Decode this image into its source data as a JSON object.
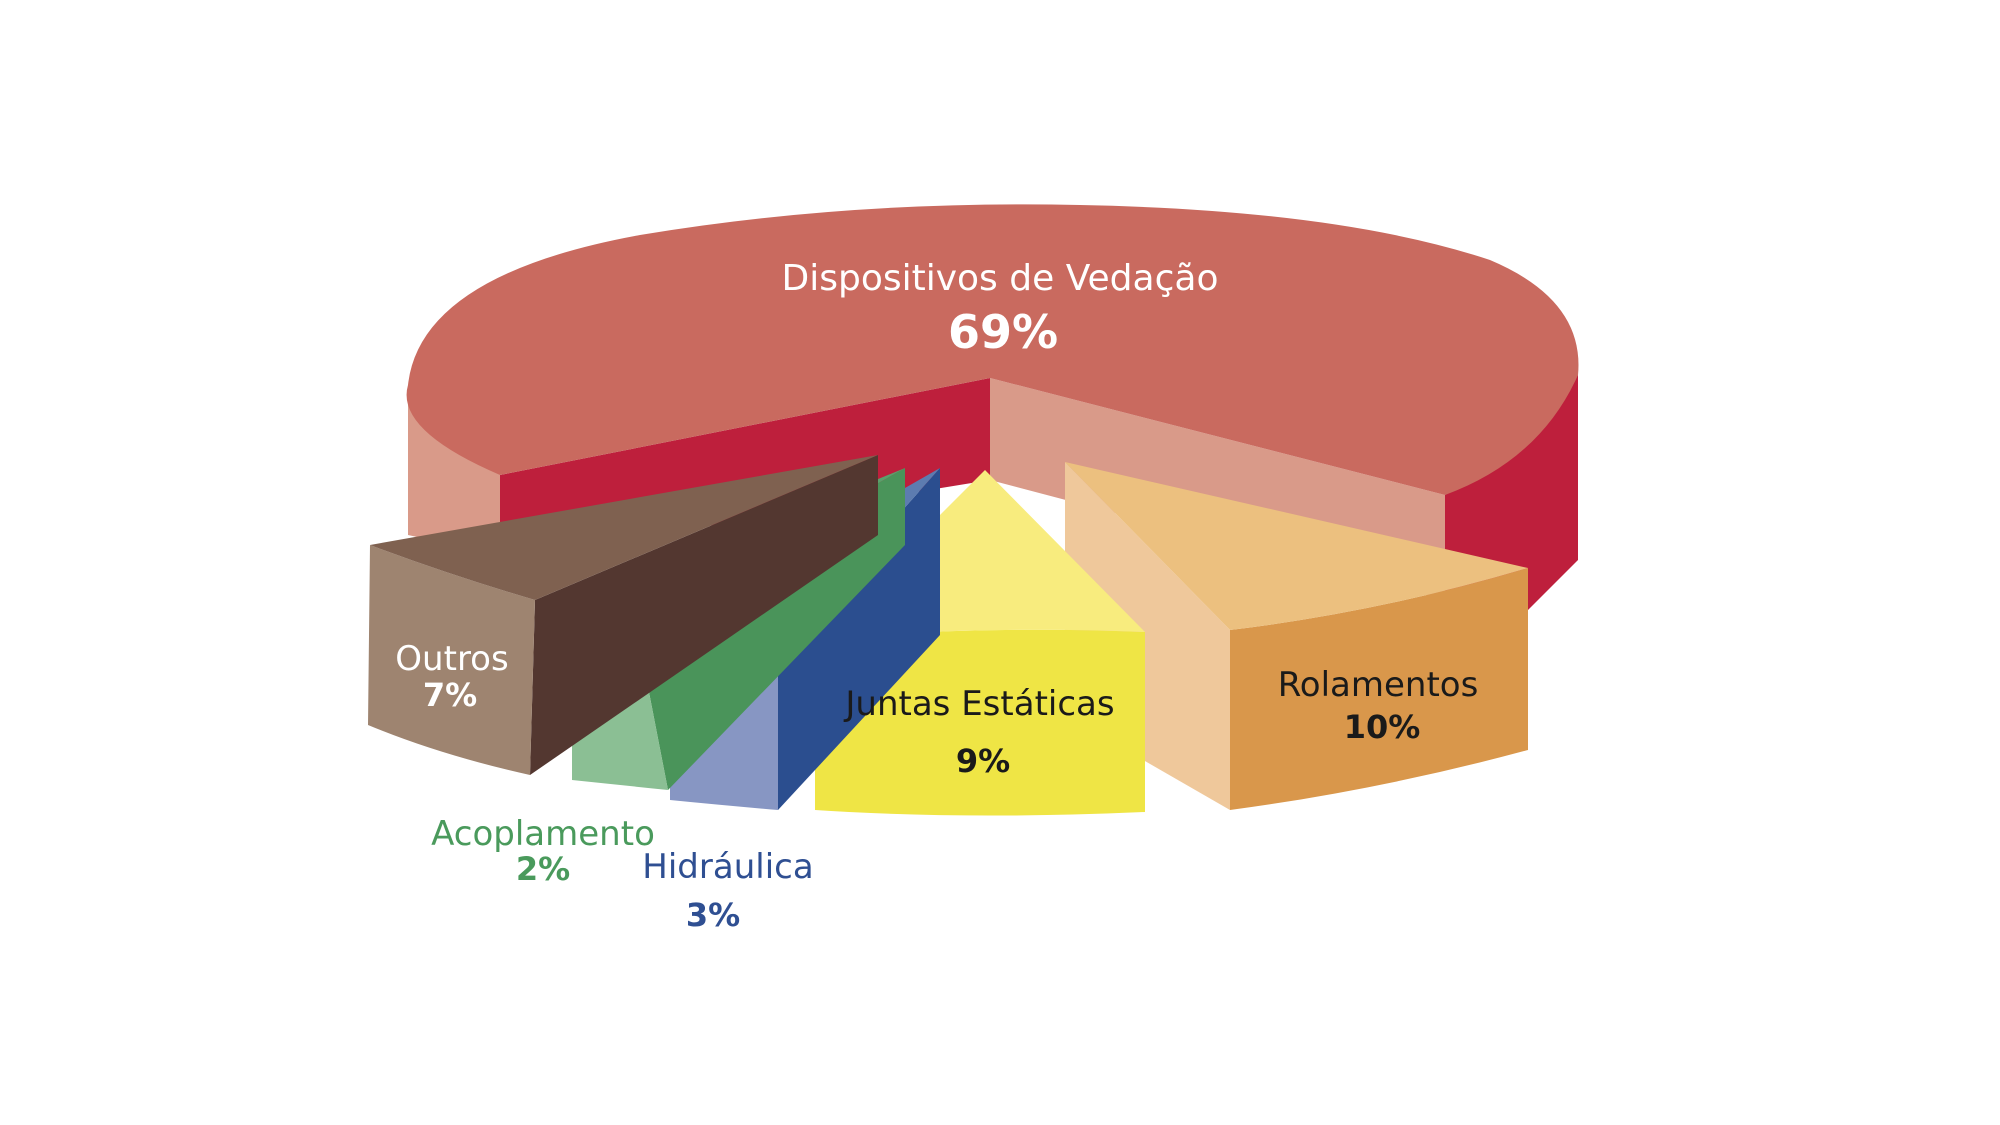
{
  "chart_data": {
    "type": "pie",
    "title": "",
    "slices": [
      {
        "name": "Dispositivos de Vedação",
        "value": 69,
        "label": "69%",
        "top": "#c96a5f",
        "side_light": "#d99a89",
        "side_dark": "#be1f3c",
        "label_color": "#ffffff"
      },
      {
        "name": "Rolamentos",
        "value": 10,
        "label": "10%",
        "top": "#ecc07f",
        "side_light": "#efc89b",
        "side_dark": "#d9974b",
        "label_color": "#1a1a1a"
      },
      {
        "name": "Juntas Estáticas",
        "value": 9,
        "label": "9%",
        "top": "#f8ec7e",
        "side_light": "#f0e64a",
        "side_dark": "#efe545",
        "label_color": "#1a1a1a"
      },
      {
        "name": "Hidráulica",
        "value": 3,
        "label": "3%",
        "top": "#5d7cb0",
        "side_light": "#8796c3",
        "side_dark": "#2b4e8f",
        "label_color": "#2f4f92"
      },
      {
        "name": "Acoplamento",
        "value": 2,
        "label": "2%",
        "top": "#5ba06c",
        "side_light": "#8bbf94",
        "side_dark": "#4a945a",
        "label_color": "#4a9a5c"
      },
      {
        "name": "Outros",
        "value": 7,
        "label": "7%",
        "top": "#7f6150",
        "side_light": "#9e8470",
        "side_dark": "#533730",
        "label_color": "#ffffff"
      }
    ]
  }
}
